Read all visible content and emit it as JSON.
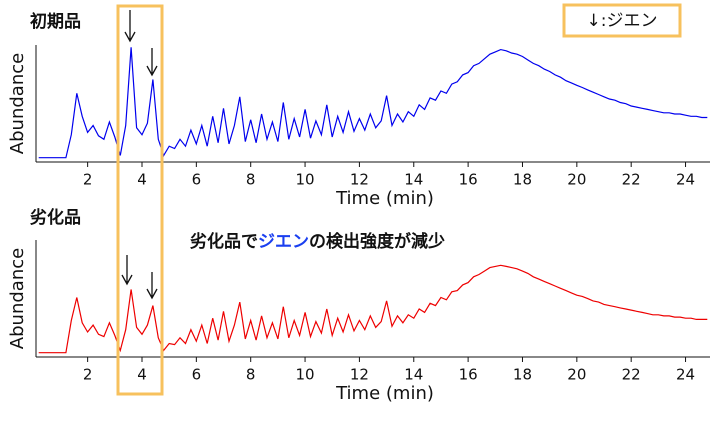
{
  "chart_data": [
    {
      "type": "line",
      "title": "初期品",
      "x_label": "Time (min)",
      "y_label": "Abundance",
      "color": "#0000ee",
      "xlim": [
        0.1,
        24.9
      ],
      "xticks": [
        2,
        4,
        6,
        8,
        10,
        12,
        14,
        16,
        18,
        20,
        22,
        24
      ],
      "ylim": [
        0,
        100
      ],
      "x": [
        0.2,
        0.4,
        0.6,
        0.8,
        1.0,
        1.2,
        1.4,
        1.6,
        1.8,
        2.0,
        2.2,
        2.4,
        2.6,
        2.8,
        3.0,
        3.2,
        3.4,
        3.6,
        3.8,
        4.0,
        4.2,
        4.4,
        4.6,
        4.8,
        5.0,
        5.2,
        5.4,
        5.6,
        5.8,
        6.0,
        6.2,
        6.4,
        6.6,
        6.8,
        7.0,
        7.2,
        7.4,
        7.6,
        7.8,
        8.0,
        8.2,
        8.4,
        8.6,
        8.8,
        9.0,
        9.2,
        9.4,
        9.6,
        9.8,
        10.0,
        10.2,
        10.4,
        10.6,
        10.8,
        11.0,
        11.2,
        11.4,
        11.6,
        11.8,
        12.0,
        12.2,
        12.4,
        12.6,
        12.8,
        13.0,
        13.2,
        13.4,
        13.6,
        13.8,
        14.0,
        14.2,
        14.4,
        14.6,
        14.8,
        15.0,
        15.2,
        15.4,
        15.6,
        15.8,
        16.0,
        16.2,
        16.4,
        16.6,
        16.8,
        17.0,
        17.2,
        17.4,
        17.6,
        17.8,
        18.0,
        18.2,
        18.4,
        18.6,
        18.8,
        19.0,
        19.2,
        19.4,
        19.6,
        19.8,
        20.0,
        20.2,
        20.4,
        20.6,
        20.8,
        21.0,
        21.2,
        21.4,
        21.6,
        21.8,
        22.0,
        22.2,
        22.4,
        22.6,
        22.8,
        23.0,
        23.2,
        23.4,
        23.6,
        23.8,
        24.0,
        24.2,
        24.4,
        24.6,
        24.8
      ],
      "values": [
        2,
        2,
        2,
        2,
        2,
        2,
        22,
        58,
        38,
        24,
        30,
        21,
        18,
        33,
        20,
        4,
        30,
        98,
        28,
        22,
        32,
        70,
        18,
        4,
        12,
        10,
        18,
        12,
        26,
        14,
        30,
        12,
        38,
        15,
        45,
        14,
        30,
        55,
        16,
        35,
        15,
        40,
        18,
        33,
        16,
        50,
        18,
        36,
        20,
        44,
        19,
        34,
        22,
        48,
        20,
        38,
        24,
        42,
        25,
        36,
        26,
        40,
        28,
        34,
        56,
        30,
        40,
        33,
        42,
        38,
        48,
        44,
        54,
        52,
        60,
        58,
        66,
        68,
        74,
        76,
        82,
        84,
        88,
        92,
        94,
        96,
        95,
        93,
        92,
        90,
        87,
        84,
        82,
        79,
        77,
        74,
        72,
        69,
        67,
        65,
        63,
        61,
        59,
        57,
        55,
        53,
        52,
        50,
        49,
        47,
        46,
        45,
        44,
        43,
        42,
        41,
        41,
        40,
        40,
        39,
        38,
        38,
        37,
        37
      ]
    },
    {
      "type": "line",
      "title": "劣化品",
      "x_label": "Time (min)",
      "y_label": "Abundance",
      "color": "#ee0000",
      "annotation": [
        "劣化品で",
        "ジエン",
        "の検出強度が減少"
      ],
      "xlim": [
        0.1,
        24.9
      ],
      "xticks": [
        2,
        4,
        6,
        8,
        10,
        12,
        14,
        16,
        18,
        20,
        22,
        24
      ],
      "ylim": [
        0,
        100
      ],
      "x": [
        0.2,
        0.4,
        0.6,
        0.8,
        1.0,
        1.2,
        1.4,
        1.6,
        1.8,
        2.0,
        2.2,
        2.4,
        2.6,
        2.8,
        3.0,
        3.2,
        3.4,
        3.6,
        3.8,
        4.0,
        4.2,
        4.4,
        4.6,
        4.8,
        5.0,
        5.2,
        5.4,
        5.6,
        5.8,
        6.0,
        6.2,
        6.4,
        6.6,
        6.8,
        7.0,
        7.2,
        7.4,
        7.6,
        7.8,
        8.0,
        8.2,
        8.4,
        8.6,
        8.8,
        9.0,
        9.2,
        9.4,
        9.6,
        9.8,
        10.0,
        10.2,
        10.4,
        10.6,
        10.8,
        11.0,
        11.2,
        11.4,
        11.6,
        11.8,
        12.0,
        12.2,
        12.4,
        12.6,
        12.8,
        13.0,
        13.2,
        13.4,
        13.6,
        13.8,
        14.0,
        14.2,
        14.4,
        14.6,
        14.8,
        15.0,
        15.2,
        15.4,
        15.6,
        15.8,
        16.0,
        16.2,
        16.4,
        16.6,
        16.8,
        17.0,
        17.2,
        17.4,
        17.6,
        17.8,
        18.0,
        18.2,
        18.4,
        18.6,
        18.8,
        19.0,
        19.2,
        19.4,
        19.6,
        19.8,
        20.0,
        20.2,
        20.4,
        20.6,
        20.8,
        21.0,
        21.2,
        21.4,
        21.6,
        21.8,
        22.0,
        22.2,
        22.4,
        22.6,
        22.8,
        23.0,
        23.2,
        23.4,
        23.6,
        23.8,
        24.0,
        24.2,
        24.4,
        24.6,
        24.8
      ],
      "values": [
        2,
        2,
        2,
        2,
        2,
        2,
        30,
        50,
        28,
        20,
        26,
        18,
        16,
        28,
        17,
        4,
        22,
        57,
        24,
        18,
        26,
        43,
        15,
        4,
        10,
        9,
        15,
        10,
        22,
        12,
        26,
        10,
        32,
        13,
        38,
        12,
        26,
        46,
        14,
        30,
        13,
        34,
        15,
        28,
        14,
        42,
        15,
        30,
        17,
        37,
        16,
        29,
        19,
        40,
        17,
        32,
        20,
        35,
        21,
        30,
        22,
        34,
        24,
        29,
        47,
        25,
        34,
        28,
        35,
        32,
        40,
        37,
        45,
        43,
        50,
        48,
        55,
        56,
        61,
        63,
        68,
        70,
        73,
        76,
        77,
        78,
        77,
        76,
        75,
        73,
        71,
        68,
        66,
        64,
        62,
        60,
        58,
        56,
        54,
        52,
        51,
        49,
        47,
        46,
        44,
        43,
        42,
        41,
        40,
        39,
        38,
        37,
        36,
        35,
        35,
        34,
        34,
        33,
        33,
        32,
        32,
        31,
        31,
        31
      ]
    }
  ],
  "legend_note": "↓:ジエン"
}
